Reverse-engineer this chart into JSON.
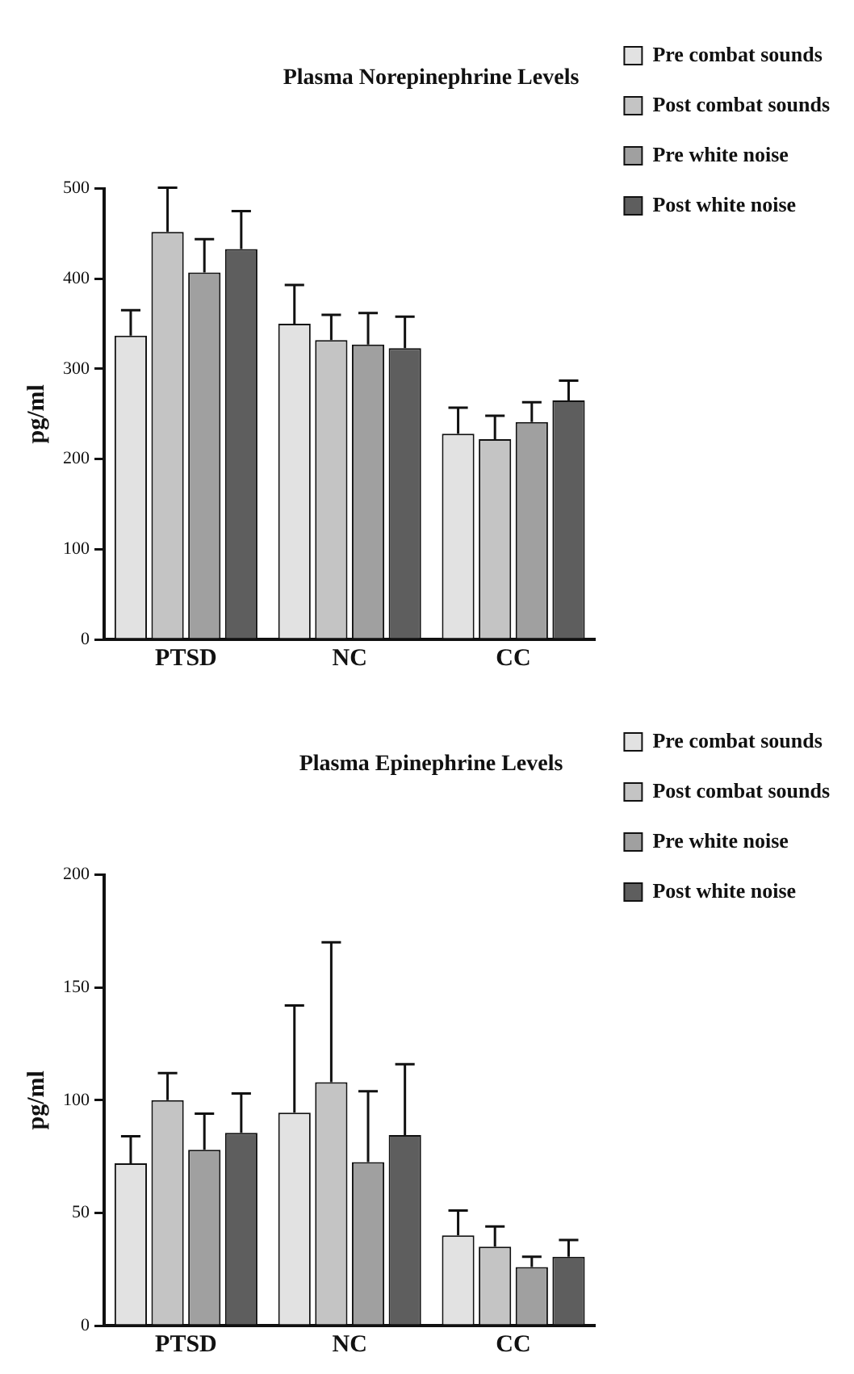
{
  "chart_data": [
    {
      "type": "bar",
      "title": "Plasma Norepinephrine Levels",
      "ylabel": "pg/ml",
      "categories": [
        "PTSD",
        "NC",
        "CC"
      ],
      "ylim": [
        0,
        500
      ],
      "yticks": [
        0,
        100,
        200,
        300,
        400,
        500
      ],
      "legend": "top right",
      "series": [
        {
          "name": "Pre combat sounds",
          "color": "#e2e2e2",
          "values": [
            337,
            350,
            228
          ],
          "errors": [
            [
              337,
              365
            ],
            [
              350,
              393
            ],
            [
              228,
              257
            ]
          ]
        },
        {
          "name": "Post combat sounds",
          "color": "#c4c4c4",
          "values": [
            452,
            332,
            222
          ],
          "errors": [
            [
              452,
              501
            ],
            [
              332,
              360
            ],
            [
              222,
              248
            ]
          ]
        },
        {
          "name": "Pre white noise",
          "color": "#a0a0a0",
          "values": [
            407,
            327,
            241
          ],
          "errors": [
            [
              407,
              444
            ],
            [
              327,
              362
            ],
            [
              241,
              263
            ]
          ]
        },
        {
          "name": "Post white noise",
          "color": "#5e5e5e",
          "values": [
            433,
            323,
            265
          ],
          "errors": [
            [
              433,
              475
            ],
            [
              323,
              358
            ],
            [
              265,
              287
            ]
          ]
        }
      ]
    },
    {
      "type": "bar",
      "title": "Plasma Epinephrine Levels",
      "ylabel": "pg/ml",
      "categories": [
        "PTSD",
        "NC",
        "CC"
      ],
      "ylim": [
        0,
        200
      ],
      "yticks": [
        0,
        50,
        100,
        150,
        200
      ],
      "legend": "top right",
      "series": [
        {
          "name": "Pre combat sounds",
          "color": "#e2e2e2",
          "values": [
            72,
            94.5,
            40
          ],
          "errors": [
            [
              72,
              84
            ],
            [
              94.5,
              142
            ],
            [
              40,
              51
            ]
          ]
        },
        {
          "name": "Post combat sounds",
          "color": "#c4c4c4",
          "values": [
            100,
            108,
            35
          ],
          "errors": [
            [
              100,
              112
            ],
            [
              108,
              170
            ],
            [
              35,
              44
            ]
          ]
        },
        {
          "name": "Pre white noise",
          "color": "#a0a0a0",
          "values": [
            78,
            72.5,
            26
          ],
          "errors": [
            [
              78,
              94
            ],
            [
              72.5,
              104
            ],
            [
              26,
              30.5
            ]
          ]
        },
        {
          "name": "Post white noise",
          "color": "#5e5e5e",
          "values": [
            85.5,
            84.5,
            30.5
          ],
          "errors": [
            [
              85.5,
              103
            ],
            [
              84.5,
              116
            ],
            [
              30.5,
              38
            ]
          ]
        }
      ]
    }
  ]
}
